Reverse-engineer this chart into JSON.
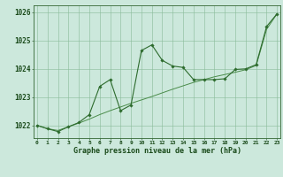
{
  "x": [
    0,
    1,
    2,
    3,
    4,
    5,
    6,
    7,
    8,
    9,
    10,
    11,
    12,
    13,
    14,
    15,
    16,
    17,
    18,
    19,
    20,
    21,
    22,
    23
  ],
  "line_trend": [
    1022.0,
    1021.88,
    1021.82,
    1021.95,
    1022.08,
    1022.22,
    1022.38,
    1022.52,
    1022.65,
    1022.78,
    1022.9,
    1023.02,
    1023.15,
    1023.28,
    1023.4,
    1023.52,
    1023.62,
    1023.72,
    1023.8,
    1023.88,
    1023.97,
    1024.12,
    1025.4,
    1025.95
  ],
  "line_data": [
    1022.0,
    1021.88,
    1021.78,
    1021.95,
    1022.1,
    1022.38,
    1023.38,
    1023.62,
    1022.52,
    1022.72,
    1024.65,
    1024.85,
    1024.3,
    1024.1,
    1024.05,
    1023.62,
    1023.62,
    1023.62,
    1023.65,
    1023.98,
    1024.0,
    1024.15,
    1025.5,
    1025.95
  ],
  "ylim_min": 1021.55,
  "ylim_max": 1026.25,
  "yticks": [
    1022,
    1023,
    1024,
    1025,
    1026
  ],
  "xticks": [
    0,
    1,
    2,
    3,
    4,
    5,
    6,
    7,
    8,
    9,
    10,
    11,
    12,
    13,
    14,
    15,
    16,
    17,
    18,
    19,
    20,
    21,
    22,
    23
  ],
  "xlabel": "Graphe pression niveau de la mer (hPa)",
  "line_color_trend": "#4a8c4a",
  "line_color_data": "#2d6b2d",
  "bg_color": "#cce8dc",
  "grid_color": "#88bb99",
  "tick_label_color": "#1a4a1a",
  "xlabel_color": "#1a4a1a",
  "spine_color": "#336633"
}
